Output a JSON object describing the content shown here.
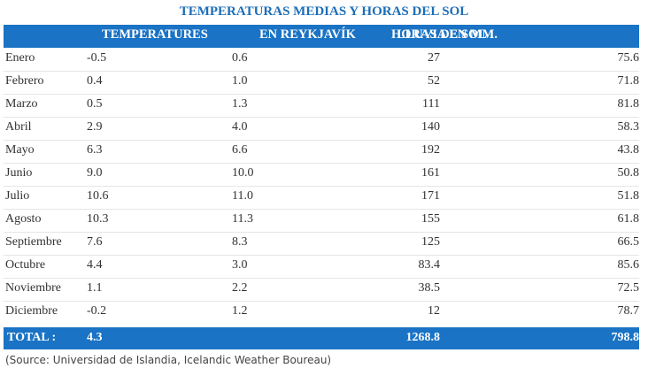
{
  "title": "TEMPERATURAS MEDIAS Y HORAS DEL SOL",
  "table": {
    "header": [
      "TEMPERATURES",
      "EN REYKJAVÍK",
      "HORAS DE SOL",
      "LLUVIA EN MM."
    ],
    "rows": [
      [
        "Enero",
        "-0.5",
        "0.6",
        "27",
        "75.6"
      ],
      [
        "Febrero",
        "0.4",
        "1.0",
        "52",
        "71.8"
      ],
      [
        "Marzo",
        "0.5",
        "1.3",
        "111",
        "81.8"
      ],
      [
        "Abril",
        "2.9",
        "4.0",
        "140",
        "58.3"
      ],
      [
        "Mayo",
        "6.3",
        "6.6",
        "192",
        "43.8"
      ],
      [
        "Junio",
        "9.0",
        "10.0",
        "161",
        "50.8"
      ],
      [
        "Julio",
        "10.6",
        "11.0",
        "171",
        "51.8"
      ],
      [
        "Agosto",
        "10.3",
        "11.3",
        "155",
        "61.8"
      ],
      [
        "Septiembre",
        "7.6",
        "8.3",
        "125",
        "66.5"
      ],
      [
        "Octubre",
        "4.4",
        "3.0",
        "83.4",
        "85.6"
      ],
      [
        "Noviembre",
        "1.1",
        "2.2",
        "38.5",
        "72.5"
      ],
      [
        "Diciembre",
        "-0.2",
        "1.2",
        "12",
        "78.7"
      ]
    ],
    "total": {
      "label": "TOTAL :",
      "temp": "4.3",
      "hours": "1268.8",
      "rain": "798.8"
    }
  },
  "source": "(Source: Universidad de Islandia, Icelandic Weather Boureau)"
}
